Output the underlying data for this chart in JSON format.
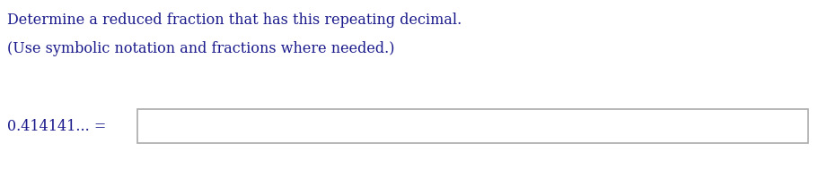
{
  "title_line1": "Determine a reduced fraction that has this repeating decimal.",
  "title_line2": "(Use symbolic notation and fractions where needed.)",
  "label_text": "0.414141... =",
  "text_color": "#1a1a8c",
  "background_color": "#ffffff",
  "title_fontsize": 11.5,
  "label_fontsize": 11.5,
  "box_edgecolor": "#aaaaaa",
  "box_facecolor": "#ffffff",
  "fig_width": 9.11,
  "fig_height": 2.08,
  "dpi": 100
}
